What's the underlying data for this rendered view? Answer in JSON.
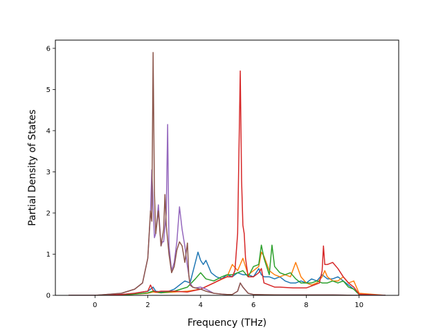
{
  "chart_data": {
    "type": "line",
    "title": "",
    "xlabel": "Frequency (THz)",
    "ylabel": "Partial Density of States",
    "xlim": [
      -1.5,
      11.5
    ],
    "ylim": [
      0,
      6.2
    ],
    "xticks": [
      0,
      2,
      4,
      6,
      8,
      10
    ],
    "yticks": [
      0,
      1,
      2,
      3,
      4,
      5,
      6
    ],
    "grid": false,
    "legend": "none",
    "series": [
      {
        "color": "#1f77b4",
        "x": [
          -1.0,
          0.0,
          1.0,
          1.5,
          2.0,
          2.1,
          2.2,
          2.3,
          2.5,
          2.8,
          3.0,
          3.2,
          3.4,
          3.6,
          3.8,
          3.9,
          4.0,
          4.1,
          4.2,
          4.4,
          4.6,
          4.8,
          5.0,
          5.2,
          5.4,
          5.6,
          5.8,
          6.0,
          6.2,
          6.3,
          6.4,
          6.6,
          6.8,
          7.0,
          7.2,
          7.4,
          7.6,
          7.8,
          8.0,
          8.2,
          8.4,
          8.6,
          8.8,
          9.0,
          9.2,
          9.4,
          9.6,
          9.8,
          10.0,
          11.0
        ],
        "y": [
          0,
          0,
          0.02,
          0.05,
          0.1,
          0.15,
          0.2,
          0.1,
          0.08,
          0.1,
          0.15,
          0.25,
          0.35,
          0.3,
          0.8,
          1.05,
          0.85,
          0.75,
          0.85,
          0.55,
          0.45,
          0.4,
          0.5,
          0.45,
          0.55,
          0.5,
          0.5,
          0.45,
          0.65,
          0.5,
          0.45,
          0.45,
          0.4,
          0.45,
          0.35,
          0.3,
          0.3,
          0.35,
          0.3,
          0.4,
          0.35,
          0.5,
          0.4,
          0.4,
          0.45,
          0.35,
          0.25,
          0.15,
          0.02,
          0
        ]
      },
      {
        "color": "#ff7f0e",
        "x": [
          -1.0,
          0.0,
          1.0,
          1.5,
          2.0,
          2.2,
          2.5,
          3.0,
          3.5,
          4.0,
          4.5,
          5.0,
          5.2,
          5.4,
          5.6,
          5.8,
          6.0,
          6.2,
          6.3,
          6.4,
          6.6,
          6.8,
          7.0,
          7.2,
          7.4,
          7.6,
          7.8,
          8.0,
          8.2,
          8.4,
          8.6,
          8.7,
          8.8,
          9.0,
          9.2,
          9.4,
          9.6,
          9.8,
          10.0,
          11.0
        ],
        "y": [
          0,
          0,
          0.01,
          0.03,
          0.05,
          0.08,
          0.06,
          0.08,
          0.1,
          0.15,
          0.3,
          0.45,
          0.75,
          0.6,
          0.9,
          0.5,
          0.6,
          0.7,
          1.05,
          0.95,
          0.6,
          0.5,
          0.45,
          0.5,
          0.45,
          0.8,
          0.45,
          0.3,
          0.25,
          0.3,
          0.45,
          0.6,
          0.45,
          0.35,
          0.35,
          0.45,
          0.3,
          0.35,
          0.05,
          0
        ]
      },
      {
        "color": "#2ca02c",
        "x": [
          -1.0,
          0.0,
          1.0,
          1.5,
          2.0,
          2.2,
          2.5,
          3.0,
          3.5,
          3.8,
          4.0,
          4.2,
          4.5,
          4.8,
          5.0,
          5.2,
          5.4,
          5.6,
          5.8,
          6.0,
          6.2,
          6.3,
          6.4,
          6.6,
          6.7,
          6.8,
          7.0,
          7.2,
          7.4,
          7.6,
          7.8,
          8.0,
          8.2,
          8.4,
          8.6,
          8.8,
          9.0,
          9.2,
          9.4,
          9.6,
          9.8,
          10.0,
          11.0
        ],
        "y": [
          0,
          0,
          0.01,
          0.03,
          0.06,
          0.1,
          0.06,
          0.1,
          0.2,
          0.4,
          0.55,
          0.4,
          0.35,
          0.45,
          0.5,
          0.5,
          0.55,
          0.6,
          0.45,
          0.7,
          0.75,
          1.22,
          0.9,
          0.5,
          1.22,
          0.7,
          0.55,
          0.5,
          0.55,
          0.4,
          0.3,
          0.3,
          0.3,
          0.35,
          0.3,
          0.3,
          0.35,
          0.3,
          0.35,
          0.2,
          0.15,
          0.02,
          0
        ]
      },
      {
        "color": "#d62728",
        "x": [
          -1.0,
          0.0,
          1.0,
          1.5,
          2.0,
          2.1,
          2.2,
          2.3,
          2.5,
          3.0,
          3.5,
          4.0,
          4.5,
          4.8,
          5.0,
          5.2,
          5.3,
          5.4,
          5.45,
          5.5,
          5.55,
          5.6,
          5.65,
          5.7,
          5.8,
          6.0,
          6.2,
          6.3,
          6.4,
          6.6,
          6.8,
          7.0,
          7.5,
          8.0,
          8.3,
          8.5,
          8.6,
          8.65,
          8.7,
          8.8,
          9.0,
          9.2,
          9.4,
          9.6,
          9.8,
          10.0,
          11.0
        ],
        "y": [
          0,
          0,
          0.02,
          0.05,
          0.1,
          0.25,
          0.12,
          0.08,
          0.1,
          0.1,
          0.08,
          0.15,
          0.3,
          0.4,
          0.45,
          0.45,
          0.6,
          1.5,
          3.5,
          5.45,
          2.8,
          1.7,
          1.5,
          0.9,
          0.45,
          0.45,
          0.55,
          0.65,
          0.3,
          0.25,
          0.2,
          0.2,
          0.18,
          0.18,
          0.25,
          0.3,
          0.6,
          1.2,
          0.75,
          0.75,
          0.8,
          0.65,
          0.45,
          0.3,
          0.2,
          0.03,
          0
        ]
      },
      {
        "color": "#9467bd",
        "x": [
          -1.0,
          0.0,
          1.0,
          1.5,
          1.8,
          2.0,
          2.1,
          2.15,
          2.25,
          2.3,
          2.4,
          2.5,
          2.55,
          2.6,
          2.7,
          2.75,
          2.8,
          2.9,
          3.0,
          3.1,
          3.2,
          3.3,
          3.4,
          3.5,
          3.6,
          3.7,
          3.8,
          4.0,
          4.2,
          4.5,
          4.8,
          5.0,
          5.2,
          5.4,
          5.5,
          5.6,
          5.8,
          6.0,
          6.5,
          7.0,
          8.0,
          9.0,
          10.0,
          11.0
        ],
        "y": [
          0,
          0,
          0.05,
          0.15,
          0.3,
          0.9,
          2.0,
          3.05,
          1.4,
          1.5,
          2.2,
          1.2,
          1.3,
          1.3,
          2.0,
          4.15,
          1.2,
          0.6,
          0.8,
          1.3,
          2.15,
          1.6,
          1.2,
          0.7,
          0.3,
          0.2,
          0.18,
          0.2,
          0.15,
          0.05,
          0.03,
          0.02,
          0.02,
          0.1,
          0.3,
          0.2,
          0.05,
          0.02,
          0.01,
          0.01,
          0.01,
          0.01,
          0,
          0
        ]
      },
      {
        "color": "#8c564b",
        "x": [
          -1.0,
          0.0,
          1.0,
          1.5,
          1.8,
          2.0,
          2.1,
          2.15,
          2.2,
          2.25,
          2.3,
          2.4,
          2.5,
          2.6,
          2.65,
          2.7,
          2.8,
          2.9,
          3.0,
          3.1,
          3.2,
          3.3,
          3.4,
          3.5,
          3.55,
          3.6,
          3.7,
          3.8,
          4.0,
          4.2,
          4.5,
          4.8,
          5.0,
          5.2,
          5.4,
          5.5,
          5.6,
          5.8,
          6.0,
          7.0,
          8.0,
          9.0,
          10.0,
          11.0
        ],
        "y": [
          0,
          0,
          0.05,
          0.15,
          0.3,
          0.9,
          2.05,
          1.8,
          5.9,
          2.5,
          1.5,
          2.05,
          1.2,
          1.6,
          2.45,
          1.7,
          1.0,
          0.55,
          0.7,
          1.1,
          1.3,
          1.2,
          0.8,
          1.27,
          0.5,
          0.25,
          0.2,
          0.18,
          0.15,
          0.1,
          0.05,
          0.03,
          0.02,
          0.02,
          0.1,
          0.3,
          0.2,
          0.05,
          0.02,
          0.01,
          0.01,
          0.01,
          0,
          0
        ]
      }
    ]
  }
}
